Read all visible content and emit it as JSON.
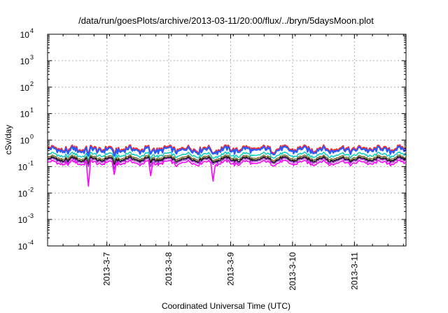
{
  "chart_data": {
    "type": "line",
    "title": "/data/run/goesPlots/archive/2013-03-11/20:00/flux/../bryn/5daysMoon.plot",
    "xlabel": "Coordinated Universal Time (UTC)",
    "ylabel": "cSv/day",
    "yscale": "log",
    "ylim": [
      0.0001,
      10000
    ],
    "xlim": [
      "2013-03-06T01:00",
      "2013-03-11T20:00"
    ],
    "grid": true,
    "legend": "none",
    "y_ticks": [
      {
        "base": "10",
        "exp": "-4"
      },
      {
        "base": "10",
        "exp": "-3"
      },
      {
        "base": "10",
        "exp": "-2"
      },
      {
        "base": "10",
        "exp": "-1"
      },
      {
        "base": "10",
        "exp": "0"
      },
      {
        "base": "10",
        "exp": "1"
      },
      {
        "base": "10",
        "exp": "2"
      },
      {
        "base": "10",
        "exp": "3"
      },
      {
        "base": "10",
        "exp": "4"
      }
    ],
    "x_ticks": [
      {
        "label": "2013-3-7",
        "t": "2013-03-07T00:00"
      },
      {
        "label": "2013-3-8",
        "t": "2013-03-08T00:00"
      },
      {
        "label": "2013-3-9",
        "t": "2013-03-09T00:00"
      },
      {
        "label": "2013-3-10",
        "t": "2013-03-10T00:00"
      },
      {
        "label": "2013-3-11",
        "t": "2013-03-11T00:00"
      }
    ],
    "dip_times": [
      "2013-03-06T17:00",
      "2013-03-07T03:00",
      "2013-03-07T17:00",
      "2013-03-08T17:00",
      "2013-03-06T09:00",
      "2013-03-08T03:00",
      "2013-03-09T03:00",
      "2013-03-10T14:00"
    ],
    "series": [
      {
        "color": "#ff2a2a",
        "base": 0.48,
        "amp": 0.22,
        "dips": [
          0.3,
          0.3,
          0.3,
          0.3,
          0.35,
          0.4,
          0.4,
          0.4
        ]
      },
      {
        "color": "#2b59ff",
        "base": 0.43,
        "amp": 0.22,
        "dips": [
          0.25,
          0.25,
          0.3,
          0.3,
          0.3,
          0.35,
          0.35,
          0.35
        ]
      },
      {
        "color": "#12cfc2",
        "base": 0.28,
        "amp": 0.12,
        "dips": [
          0.18,
          0.18,
          0.2,
          0.2,
          0.22,
          0.22,
          0.22,
          0.22
        ]
      },
      {
        "color": "#7a6a30",
        "base": 0.22,
        "amp": 0.1,
        "dips": [
          0.15,
          0.15,
          0.16,
          0.16,
          0.18,
          0.18,
          0.18,
          0.18
        ]
      },
      {
        "color": "#000000",
        "base": 0.19,
        "amp": 0.1,
        "dips": [
          0.12,
          0.12,
          0.14,
          0.14,
          0.15,
          0.15,
          0.15,
          0.15
        ]
      },
      {
        "color": "#9b3cc8",
        "base": 0.17,
        "amp": 0.1,
        "dips": [
          0.1,
          0.08,
          0.1,
          0.12,
          0.13,
          0.13,
          0.13,
          0.13
        ]
      },
      {
        "color": "#ff00ff",
        "base": 0.14,
        "amp": 0.12,
        "dips": [
          0.018,
          0.05,
          0.045,
          0.028,
          0.11,
          0.1,
          0.11,
          0.11
        ]
      }
    ]
  }
}
